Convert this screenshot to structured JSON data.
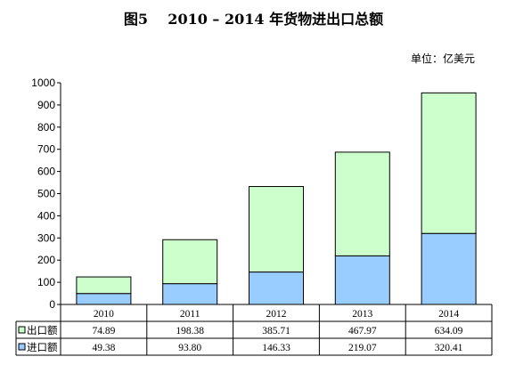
{
  "title": "图5    2010 – 2014 年货物进出口总额",
  "unit_label": "单位：亿美元",
  "colors": {
    "export": "#ccffcc",
    "import": "#99ccff",
    "border": "#000000",
    "grid_line": "#000000"
  },
  "chart_data": {
    "type": "bar",
    "stacked": true,
    "categories": [
      "2010",
      "2011",
      "2012",
      "2013",
      "2014"
    ],
    "series": [
      {
        "name": "出口额",
        "values": [
          74.89,
          198.38,
          385.71,
          467.97,
          634.09
        ],
        "labels": [
          "74.89",
          "198.38",
          "385.71",
          "467.97",
          "634.09"
        ],
        "color": "#ccffcc"
      },
      {
        "name": "进口额",
        "values": [
          49.38,
          93.8,
          146.33,
          219.07,
          320.41
        ],
        "labels": [
          "49.38",
          "93.80",
          "146.33",
          "219.07",
          "320.41"
        ],
        "color": "#99ccff"
      }
    ],
    "stack_order_bottom_to_top": [
      "进口额",
      "出口额"
    ],
    "ylim": [
      0,
      1000
    ],
    "yticks": [
      0,
      100,
      200,
      300,
      400,
      500,
      600,
      700,
      800,
      900,
      1000
    ],
    "grid": false,
    "legend": "data-table"
  }
}
